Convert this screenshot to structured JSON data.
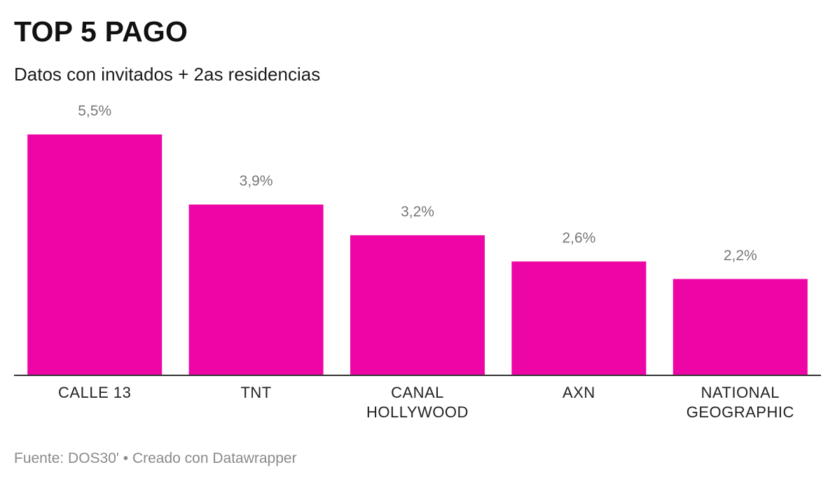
{
  "header": {
    "title": "TOP 5 PAGO",
    "subtitle": "Datos con invitados + 2as residencias"
  },
  "footer": {
    "source": "Fuente: DOS30' • Creado con Datawrapper"
  },
  "colors": {
    "bar": "#ee05a6",
    "baseline": "#333333",
    "value_label": "#777777",
    "category_label": "#222222"
  },
  "chart_data": {
    "type": "bar",
    "categories": [
      [
        "CALLE 13"
      ],
      [
        "TNT"
      ],
      [
        "CANAL",
        "HOLLYWOOD"
      ],
      [
        "AXN"
      ],
      [
        "NATIONAL",
        "GEOGRAPHIC"
      ]
    ],
    "values": [
      5.5,
      3.9,
      3.2,
      2.6,
      2.2
    ],
    "value_labels": [
      "5,5%",
      "3,9%",
      "3,2%",
      "2,6%",
      "2,2%"
    ],
    "unit": "%",
    "ylim": [
      0,
      5.5
    ],
    "grid": false,
    "legend": false
  }
}
